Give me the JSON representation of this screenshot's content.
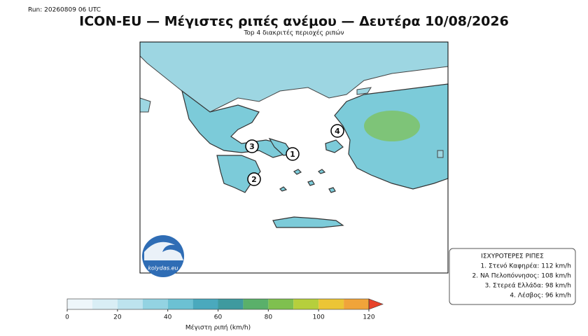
{
  "run": "Run: 20260809 06 UTC",
  "title": "ICON-EU — Μέγιστες ριπές ανέμου — Δευτέρα 10/08/2026",
  "subtitle": "Top 4 διακριτές περιοχές ριπών",
  "markers": [
    "1",
    "2",
    "3",
    "4"
  ],
  "logo": "kolydas.eu",
  "legend": {
    "title": "ΙΣΧΥΡΟΤΕΡΕΣ ΡΙΠΕΣ",
    "entries": [
      "1. Στενό Καφηρέα: 112 km/h",
      "2. ΝΑ Πελοπόννησος: 108 km/h",
      "3. Στερεά Ελλάδα: 98 km/h",
      "4. Λέσβος: 96 km/h"
    ]
  },
  "colorbar": {
    "label": "Μέγιστη ριπή (km/h)",
    "lim": [
      0,
      120
    ],
    "ticks": [
      0,
      20,
      40,
      60,
      80,
      100,
      120
    ],
    "bounds": [
      0,
      10,
      20,
      30,
      40,
      50,
      60,
      70,
      80,
      90,
      100,
      110,
      120
    ],
    "colors": [
      "#eef6fa",
      "#d9eef5",
      "#bde3ee",
      "#93d3e2",
      "#6cc1d3",
      "#4aa9bd",
      "#3f9a9f",
      "#5ab06a",
      "#7fc04f",
      "#b6cf3c",
      "#ecc535",
      "#f0a43a"
    ],
    "over_color": "#e8432b"
  }
}
